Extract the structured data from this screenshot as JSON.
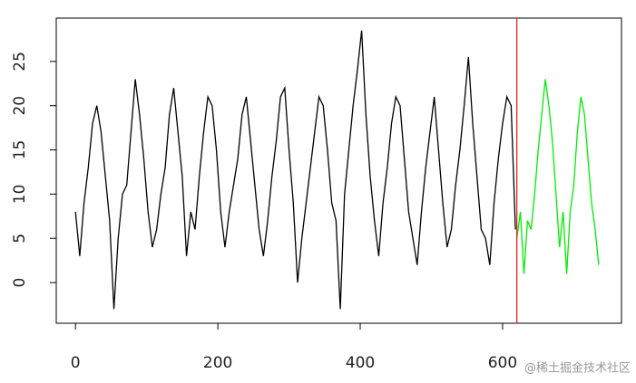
{
  "chart_data": {
    "type": "line",
    "xlim": [
      -27,
      767
    ],
    "ylim": [
      -4.6,
      29.9
    ],
    "xticks": [
      0,
      200,
      400,
      600
    ],
    "yticks": [
      0,
      5,
      10,
      15,
      20,
      25
    ],
    "vline": {
      "x": 620,
      "color": "#e8231f"
    },
    "series": [
      {
        "color": "#000000",
        "x": [
          0,
          6,
          12,
          18,
          24,
          30,
          36,
          42,
          48,
          54,
          60,
          66,
          72,
          78,
          84,
          90,
          96,
          102,
          108,
          114,
          120,
          126,
          132,
          138,
          144,
          150,
          156,
          162,
          168,
          174,
          180,
          186,
          192,
          198,
          204,
          210,
          216,
          222,
          228,
          234,
          240,
          246,
          252,
          258,
          264,
          270,
          276,
          282,
          288,
          294,
          300,
          306,
          312,
          318,
          324,
          330,
          336,
          342,
          348,
          354,
          360,
          366,
          372,
          378,
          384,
          390,
          396,
          402,
          408,
          414,
          420,
          426,
          432,
          438,
          444,
          450,
          456,
          462,
          468,
          474,
          480,
          486,
          492,
          498,
          504,
          510,
          516,
          522,
          528,
          534,
          540,
          546,
          552,
          558,
          564,
          570,
          576,
          582,
          588,
          594,
          600,
          606,
          612,
          618
        ],
        "values": [
          8,
          3,
          9,
          13,
          18,
          20,
          17,
          12,
          7,
          -3,
          5,
          10,
          11,
          17,
          23,
          19,
          14,
          8,
          4,
          6,
          10,
          13,
          19,
          22,
          17,
          12,
          3,
          8,
          6,
          12,
          17,
          21,
          20,
          15,
          8,
          4,
          8,
          11,
          14,
          19,
          21,
          16,
          11,
          6,
          3,
          7,
          12,
          16,
          21,
          22,
          15,
          9,
          0,
          5,
          9,
          13,
          17,
          21,
          20,
          15,
          9,
          7,
          -3,
          10,
          15,
          20,
          24,
          28.5,
          19,
          12,
          7,
          3,
          9,
          13,
          18,
          21,
          20,
          14,
          8,
          5,
          2,
          8,
          13,
          17,
          21,
          15,
          9,
          4,
          6,
          11,
          15,
          20,
          25.5,
          18,
          12,
          6,
          5,
          2,
          9,
          14,
          18,
          21,
          20,
          6
        ]
      },
      {
        "color": "#00ee00",
        "x": [
          620,
          625,
          630,
          635,
          640,
          645,
          650,
          655,
          660,
          665,
          670,
          675,
          680,
          685,
          690,
          695,
          700,
          705,
          710,
          715,
          720,
          725,
          730,
          735
        ],
        "values": [
          5,
          8,
          1,
          7,
          6,
          10,
          15,
          19,
          23,
          20,
          16,
          10,
          4,
          8,
          1,
          8,
          11,
          17,
          21,
          19,
          14,
          9,
          6,
          2
        ]
      }
    ],
    "watermark": "@稀土掘金技术社区"
  }
}
